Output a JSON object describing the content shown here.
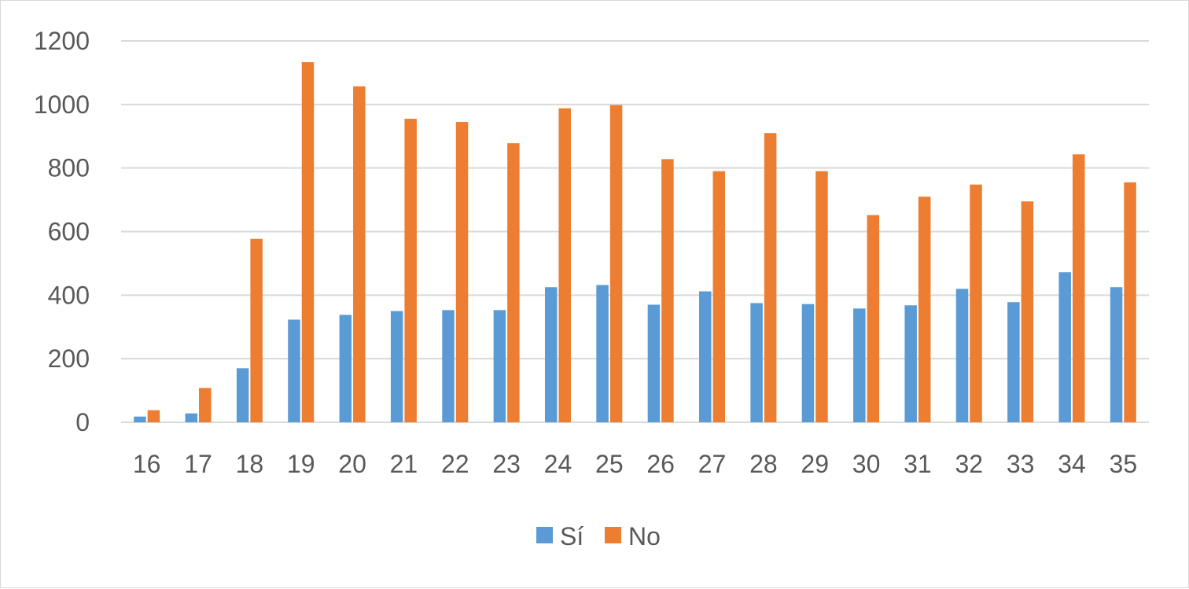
{
  "chart_data": {
    "type": "bar",
    "title": "",
    "xlabel": "",
    "ylabel": "",
    "categories": [
      "16",
      "17",
      "18",
      "19",
      "20",
      "21",
      "22",
      "23",
      "24",
      "25",
      "26",
      "27",
      "28",
      "29",
      "30",
      "31",
      "32",
      "33",
      "34",
      "35"
    ],
    "series": [
      {
        "name": "Sí",
        "color": "#5b9bd5",
        "values": [
          18,
          28,
          170,
          323,
          338,
          350,
          353,
          353,
          425,
          432,
          370,
          412,
          375,
          372,
          358,
          368,
          420,
          378,
          472,
          425
        ]
      },
      {
        "name": "No",
        "color": "#ed7d31",
        "values": [
          38,
          108,
          577,
          1133,
          1057,
          955,
          945,
          878,
          988,
          998,
          828,
          790,
          910,
          790,
          652,
          710,
          748,
          695,
          843,
          755
        ]
      }
    ],
    "ylim": [
      0,
      1200
    ],
    "yticks": [
      0,
      200,
      400,
      600,
      800,
      1000,
      1200
    ],
    "grid": true,
    "legend": "bottom-center"
  }
}
